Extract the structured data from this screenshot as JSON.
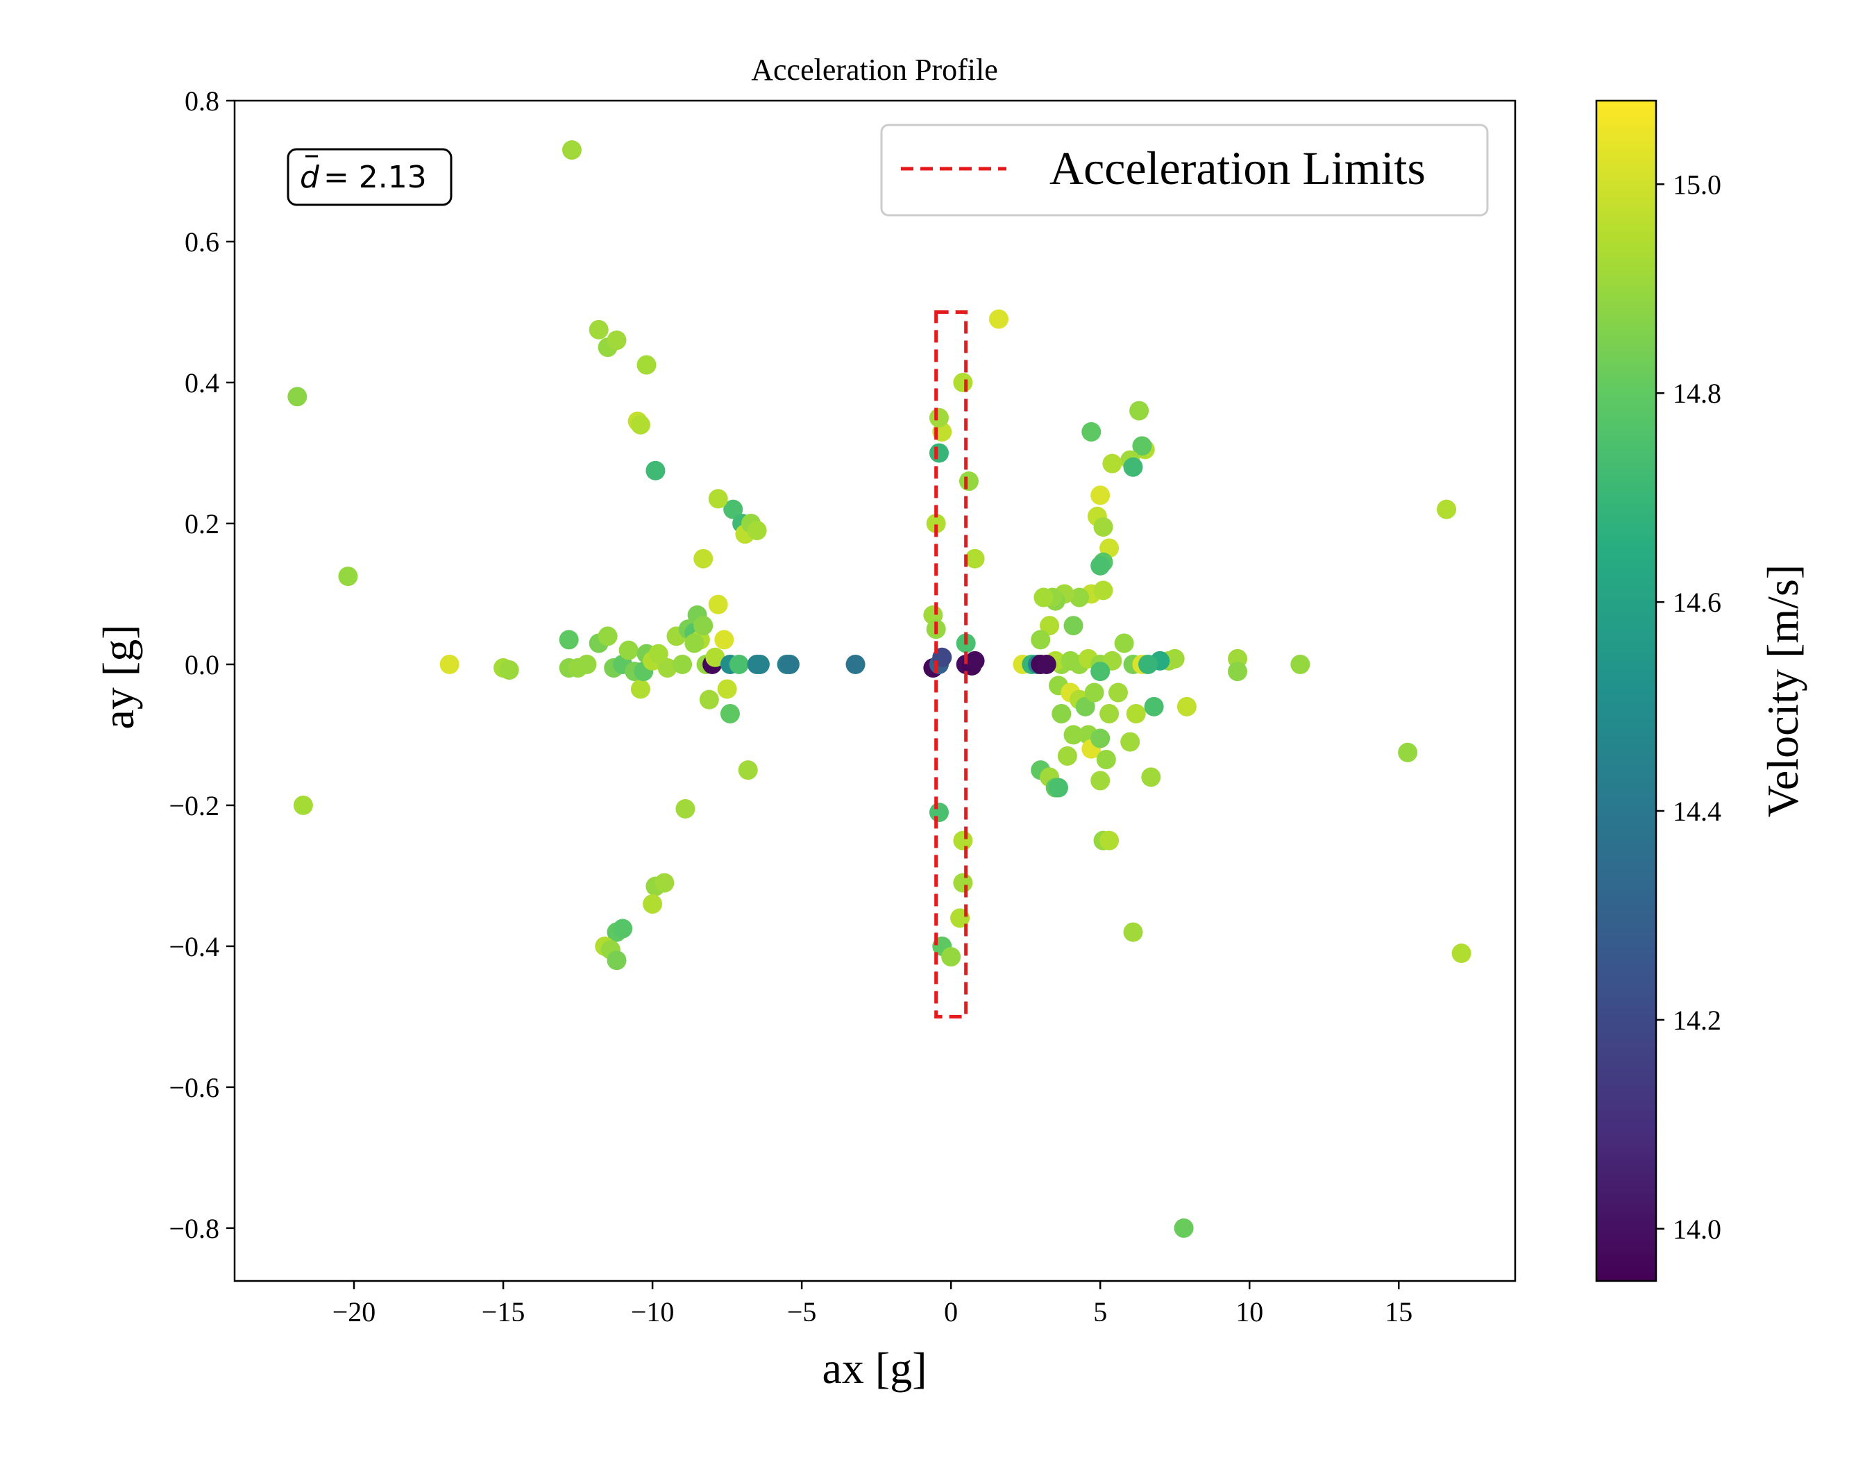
{
  "chart_data": {
    "type": "scatter",
    "title": "Acceleration Profile",
    "xlabel": "ax [g]",
    "ylabel": "ay [g]",
    "xlim": [
      -24,
      18.9
    ],
    "ylim": [
      -0.875,
      0.8
    ],
    "xticks": [
      -20,
      -15,
      -10,
      -5,
      0,
      5,
      10,
      15
    ],
    "yticks": [
      -0.8,
      -0.6,
      -0.4,
      -0.2,
      0.0,
      0.2,
      0.4,
      0.6,
      0.8
    ],
    "xtick_labels": [
      "−20",
      "−15",
      "−10",
      "−5",
      "0",
      "5",
      "10",
      "15"
    ],
    "ytick_labels": [
      "−0.8",
      "−0.6",
      "−0.4",
      "−0.2",
      "0.0",
      "0.2",
      "0.4",
      "0.6",
      "0.8"
    ],
    "grid": false,
    "annotation": "= 2.13",
    "annotation_symbol": "d",
    "limits": {
      "name": "Acceleration Limits",
      "x": [
        -0.5,
        0.5
      ],
      "y": [
        -0.5,
        0.5
      ],
      "color": "#e41a1c",
      "style": "dashed"
    },
    "legend_position": "top-right",
    "colorbar": {
      "label": "Velocity [m/s]",
      "range": [
        13.95,
        15.08
      ],
      "ticks": [
        14.0,
        14.2,
        14.4,
        14.6,
        14.8,
        15.0
      ],
      "tick_labels": [
        "14.0",
        "14.2",
        "14.4",
        "14.6",
        "14.8",
        "15.0"
      ],
      "colormap": "viridis"
    },
    "points": [
      [
        -21.9,
        0.38,
        14.88
      ],
      [
        -21.7,
        -0.2,
        14.93
      ],
      [
        -20.2,
        0.125,
        14.9
      ],
      [
        -16.8,
        0.0,
        15.02
      ],
      [
        -15.0,
        -0.005,
        14.93
      ],
      [
        -14.8,
        -0.008,
        14.91
      ],
      [
        -12.7,
        0.73,
        14.92
      ],
      [
        -12.8,
        0.035,
        14.8
      ],
      [
        -12.8,
        -0.005,
        14.88
      ],
      [
        -12.5,
        -0.005,
        14.9
      ],
      [
        -12.2,
        0.0,
        14.9
      ],
      [
        -11.8,
        0.475,
        14.92
      ],
      [
        -11.5,
        0.45,
        14.9
      ],
      [
        -11.2,
        0.46,
        14.92
      ],
      [
        -10.2,
        0.425,
        14.93
      ],
      [
        -10.5,
        0.345,
        14.98
      ],
      [
        -10.4,
        0.34,
        14.95
      ],
      [
        -9.9,
        0.275,
        14.72
      ],
      [
        -11.8,
        0.03,
        14.85
      ],
      [
        -11.5,
        0.04,
        14.9
      ],
      [
        -11.3,
        -0.005,
        14.85
      ],
      [
        -11.0,
        0.0,
        14.8
      ],
      [
        -10.8,
        0.02,
        14.9
      ],
      [
        -10.6,
        -0.01,
        14.85
      ],
      [
        -10.4,
        -0.035,
        14.95
      ],
      [
        -10.3,
        -0.01,
        14.8
      ],
      [
        -10.2,
        0.015,
        14.85
      ],
      [
        -10.0,
        0.005,
        14.95
      ],
      [
        -9.5,
        -0.005,
        14.92
      ],
      [
        -9.2,
        0.04,
        14.92
      ],
      [
        -9.0,
        0.0,
        14.9
      ],
      [
        -8.8,
        0.05,
        14.85
      ],
      [
        -8.6,
        0.045,
        14.78
      ],
      [
        -8.5,
        0.07,
        14.85
      ],
      [
        -8.4,
        0.035,
        14.95
      ],
      [
        -8.3,
        0.15,
        14.98
      ],
      [
        -8.2,
        0.0,
        14.9
      ],
      [
        -8.1,
        -0.05,
        14.92
      ],
      [
        -8.0,
        0.0,
        13.97
      ],
      [
        -7.9,
        0.01,
        14.95
      ],
      [
        -7.8,
        0.085,
        15.01
      ],
      [
        -7.6,
        0.035,
        15.02
      ],
      [
        -7.5,
        -0.035,
        14.98
      ],
      [
        -7.4,
        0.0,
        14.5
      ],
      [
        -7.3,
        0.22,
        14.75
      ],
      [
        -7.0,
        0.2,
        14.72
      ],
      [
        -6.9,
        0.185,
        14.97
      ],
      [
        -6.7,
        0.2,
        14.9
      ],
      [
        -6.5,
        0.19,
        14.93
      ],
      [
        -7.4,
        -0.07,
        14.8
      ],
      [
        -6.8,
        -0.15,
        14.92
      ],
      [
        -7.1,
        0.0,
        14.75
      ],
      [
        -6.5,
        0.0,
        14.45
      ],
      [
        -6.4,
        0.0,
        14.45
      ],
      [
        -5.5,
        0.0,
        14.45
      ],
      [
        -5.4,
        0.0,
        14.4
      ],
      [
        -3.2,
        0.0,
        14.38
      ],
      [
        -7.8,
        0.235,
        14.95
      ],
      [
        -8.6,
        0.03,
        14.9
      ],
      [
        -8.3,
        0.055,
        14.88
      ],
      [
        -9.8,
        0.015,
        14.93
      ],
      [
        -8.9,
        -0.205,
        14.92
      ],
      [
        -9.9,
        -0.315,
        14.9
      ],
      [
        -9.6,
        -0.31,
        14.92
      ],
      [
        -10.0,
        -0.34,
        14.95
      ],
      [
        -11.2,
        -0.38,
        14.8
      ],
      [
        -11.0,
        -0.375,
        14.78
      ],
      [
        -11.6,
        -0.4,
        14.95
      ],
      [
        -11.4,
        -0.405,
        14.9
      ],
      [
        -11.2,
        -0.42,
        14.85
      ],
      [
        1.6,
        0.49,
        15.02
      ],
      [
        16.6,
        0.22,
        14.95
      ],
      [
        15.3,
        -0.125,
        14.9
      ],
      [
        17.1,
        -0.41,
        14.95
      ],
      [
        11.7,
        0.0,
        14.9
      ],
      [
        9.6,
        0.008,
        14.92
      ],
      [
        9.6,
        -0.01,
        14.88
      ],
      [
        7.8,
        -0.8,
        14.82
      ],
      [
        7.9,
        -0.06,
        14.98
      ],
      [
        7.5,
        0.008,
        14.92
      ],
      [
        7.3,
        0.005,
        14.92
      ],
      [
        7.0,
        0.005,
        14.65
      ],
      [
        6.8,
        -0.06,
        14.75
      ],
      [
        6.7,
        -0.16,
        14.92
      ],
      [
        6.3,
        0.36,
        14.9
      ],
      [
        6.5,
        0.305,
        14.95
      ],
      [
        6.4,
        0.31,
        14.8
      ],
      [
        6.0,
        0.29,
        14.92
      ],
      [
        6.1,
        0.28,
        14.72
      ],
      [
        5.4,
        0.285,
        14.95
      ],
      [
        4.7,
        0.33,
        14.8
      ],
      [
        5.0,
        0.24,
        15.02
      ],
      [
        4.9,
        0.21,
        14.98
      ],
      [
        5.1,
        0.195,
        14.92
      ],
      [
        5.3,
        0.165,
        15.0
      ],
      [
        5.1,
        0.145,
        14.78
      ],
      [
        5.0,
        0.14,
        14.75
      ],
      [
        4.7,
        0.1,
        14.98
      ],
      [
        5.1,
        0.105,
        14.95
      ],
      [
        4.3,
        0.095,
        14.9
      ],
      [
        3.8,
        0.1,
        14.92
      ],
      [
        3.5,
        0.09,
        14.88
      ],
      [
        3.4,
        0.095,
        14.9
      ],
      [
        3.1,
        0.095,
        14.93
      ],
      [
        3.3,
        0.055,
        14.95
      ],
      [
        3.0,
        0.035,
        14.9
      ],
      [
        4.1,
        0.055,
        14.85
      ],
      [
        3.7,
        0.0,
        14.9
      ],
      [
        3.5,
        0.005,
        14.95
      ],
      [
        4.0,
        0.005,
        14.9
      ],
      [
        4.3,
        0.0,
        14.9
      ],
      [
        4.6,
        0.008,
        14.95
      ],
      [
        5.0,
        0.0,
        14.9
      ],
      [
        5.4,
        0.005,
        14.92
      ],
      [
        5.8,
        0.03,
        14.9
      ],
      [
        6.1,
        0.0,
        14.85
      ],
      [
        6.4,
        0.0,
        15.02
      ],
      [
        6.6,
        0.0,
        14.7
      ],
      [
        3.6,
        -0.03,
        14.9
      ],
      [
        4.0,
        -0.04,
        15.02
      ],
      [
        4.3,
        -0.05,
        14.95
      ],
      [
        4.5,
        -0.06,
        14.85
      ],
      [
        4.8,
        -0.04,
        14.9
      ],
      [
        5.0,
        -0.01,
        14.75
      ],
      [
        5.3,
        -0.07,
        14.92
      ],
      [
        5.6,
        -0.04,
        14.92
      ],
      [
        3.7,
        -0.07,
        14.88
      ],
      [
        4.1,
        -0.1,
        14.9
      ],
      [
        3.9,
        -0.13,
        14.92
      ],
      [
        4.6,
        -0.1,
        14.9
      ],
      [
        4.7,
        -0.12,
        15.03
      ],
      [
        5.0,
        -0.105,
        14.85
      ],
      [
        5.2,
        -0.135,
        14.9
      ],
      [
        6.0,
        -0.11,
        14.92
      ],
      [
        6.2,
        -0.07,
        14.95
      ],
      [
        3.0,
        -0.15,
        14.8
      ],
      [
        3.3,
        -0.16,
        14.92
      ],
      [
        3.5,
        -0.175,
        14.8
      ],
      [
        3.6,
        -0.175,
        14.75
      ],
      [
        5.0,
        -0.165,
        14.92
      ],
      [
        5.1,
        -0.25,
        14.9
      ],
      [
        5.3,
        -0.25,
        14.95
      ],
      [
        6.1,
        -0.38,
        14.92
      ],
      [
        2.4,
        0.0,
        15.02
      ],
      [
        2.7,
        0.0,
        14.7
      ],
      [
        2.9,
        0.0,
        14.45
      ],
      [
        3.0,
        0.0,
        13.97
      ],
      [
        3.2,
        0.0,
        13.98
      ],
      [
        -0.6,
        0.07,
        14.92
      ],
      [
        -0.5,
        0.05,
        14.9
      ],
      [
        -0.6,
        -0.005,
        13.97
      ],
      [
        -0.4,
        0.0,
        14.3
      ],
      [
        -0.3,
        0.01,
        14.2
      ],
      [
        0.5,
        0.0,
        13.98
      ],
      [
        0.7,
        -0.002,
        13.97
      ],
      [
        0.8,
        0.005,
        13.98
      ],
      [
        0.4,
        0.4,
        14.95
      ],
      [
        0.6,
        0.26,
        14.9
      ],
      [
        0.8,
        0.15,
        14.95
      ],
      [
        0.5,
        0.03,
        14.75
      ],
      [
        -0.4,
        -0.21,
        14.75
      ],
      [
        -0.3,
        -0.4,
        14.8
      ],
      [
        0.4,
        -0.25,
        14.95
      ],
      [
        0.4,
        -0.31,
        14.92
      ],
      [
        0.0,
        -0.415,
        14.9
      ],
      [
        0.3,
        -0.36,
        14.95
      ],
      [
        -0.5,
        0.2,
        14.95
      ],
      [
        -0.4,
        0.3,
        14.7
      ],
      [
        -0.3,
        0.33,
        14.98
      ],
      [
        -0.4,
        0.35,
        14.92
      ]
    ]
  }
}
